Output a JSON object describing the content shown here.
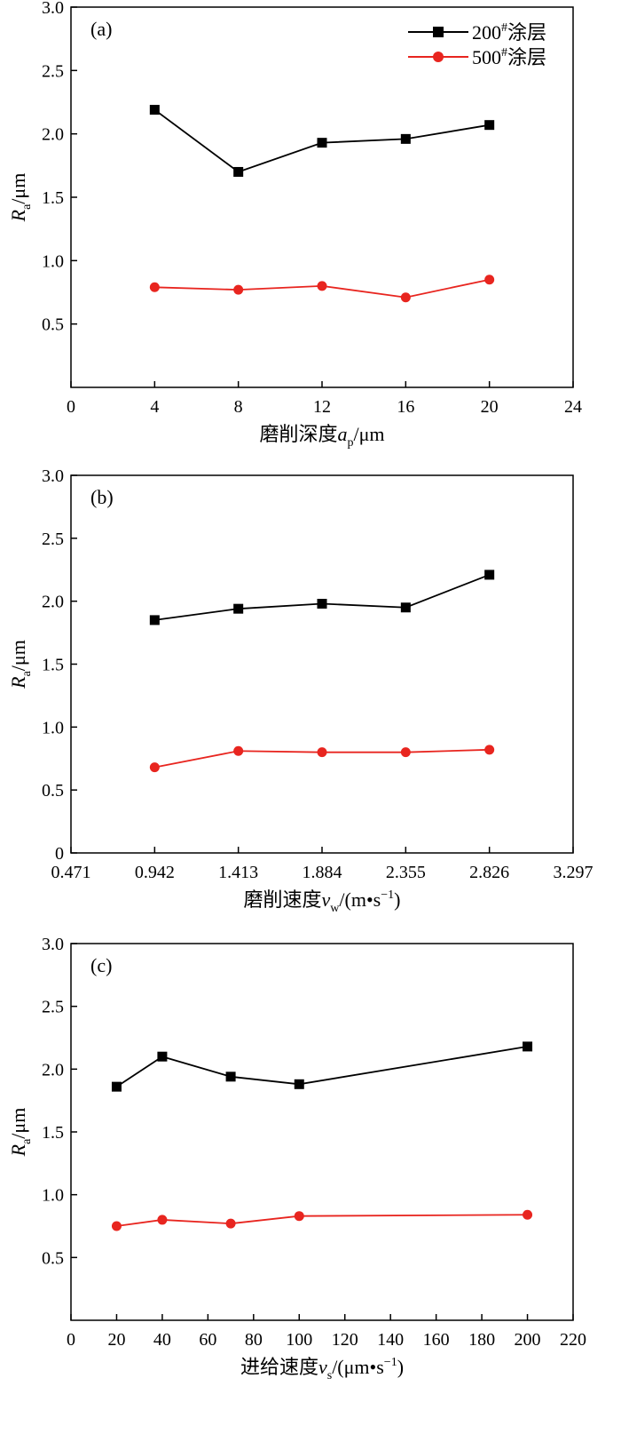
{
  "legend": {
    "series_a_main": "200",
    "series_a_sup": "#",
    "series_a_rest": "涂层",
    "series_b_main": "500",
    "series_b_sup": "#",
    "series_b_rest": "涂层"
  },
  "colors": {
    "series_200": "#000000",
    "series_500": "#e8251f"
  },
  "chart_data": [
    {
      "type": "line",
      "panel_label": "(a)",
      "xlabel": {
        "main": "磨削深度",
        "var": "a",
        "sub": "p",
        "unit": "/μm"
      },
      "ylabel": {
        "var": "R",
        "sub": "a",
        "unit": "/μm"
      },
      "x_ticks": [
        "0",
        "4",
        "8",
        "12",
        "16",
        "20",
        "24"
      ],
      "y_ticks": [
        "3.0",
        "2.5",
        "2.0",
        "1.5",
        "1.0",
        "0.5"
      ],
      "xlim": [
        0,
        24
      ],
      "ylim": [
        0,
        3.0
      ],
      "x": [
        4,
        8,
        12,
        16,
        20
      ],
      "series": [
        {
          "name": "200#涂层",
          "marker": "square",
          "values": [
            2.19,
            1.7,
            1.93,
            1.96,
            2.07
          ]
        },
        {
          "name": "500#涂层",
          "marker": "circle",
          "values": [
            0.79,
            0.77,
            0.8,
            0.71,
            0.85
          ]
        }
      ],
      "legend_position": "top-right",
      "grid": false
    },
    {
      "type": "line",
      "panel_label": "(b)",
      "xlabel": {
        "main": "磨削速度",
        "var": "v",
        "sub": "w",
        "unit": "/(m•s",
        "sup": "−1",
        "close": ")"
      },
      "ylabel": {
        "var": "R",
        "sub": "a",
        "unit": "/μm"
      },
      "x_ticks": [
        "0.471",
        "0.942",
        "1.413",
        "1.884",
        "2.355",
        "2.826",
        "3.297"
      ],
      "y_ticks": [
        "3.0",
        "2.5",
        "2.0",
        "1.5",
        "1.0",
        "0.5",
        "0"
      ],
      "xlim": [
        0.471,
        3.297
      ],
      "ylim": [
        0,
        3.0
      ],
      "x": [
        0.942,
        1.413,
        1.884,
        2.355,
        2.826
      ],
      "series": [
        {
          "name": "200#涂层",
          "marker": "square",
          "values": [
            1.85,
            1.94,
            1.98,
            1.95,
            2.21
          ]
        },
        {
          "name": "500#涂层",
          "marker": "circle",
          "values": [
            0.68,
            0.81,
            0.8,
            0.8,
            0.82
          ]
        }
      ],
      "grid": false
    },
    {
      "type": "line",
      "panel_label": "(c)",
      "xlabel": {
        "main": "进给速度",
        "var": "v",
        "sub": "s",
        "unit": "/(μm•s",
        "sup": "−1",
        "close": ")"
      },
      "ylabel": {
        "var": "R",
        "sub": "a",
        "unit": "/μm"
      },
      "x_ticks": [
        "0",
        "20",
        "40",
        "60",
        "80",
        "100",
        "120",
        "140",
        "160",
        "180",
        "200",
        "220"
      ],
      "y_ticks": [
        "3.0",
        "2.5",
        "2.0",
        "1.5",
        "1.0",
        "0.5"
      ],
      "xlim": [
        0,
        220
      ],
      "ylim": [
        0,
        3.0
      ],
      "x": [
        20,
        40,
        70,
        100,
        200
      ],
      "series": [
        {
          "name": "200#涂层",
          "marker": "square",
          "values": [
            1.86,
            2.1,
            1.94,
            1.88,
            2.18
          ]
        },
        {
          "name": "500#涂层",
          "marker": "circle",
          "values": [
            0.75,
            0.8,
            0.77,
            0.83,
            0.84
          ]
        }
      ],
      "grid": false
    }
  ]
}
